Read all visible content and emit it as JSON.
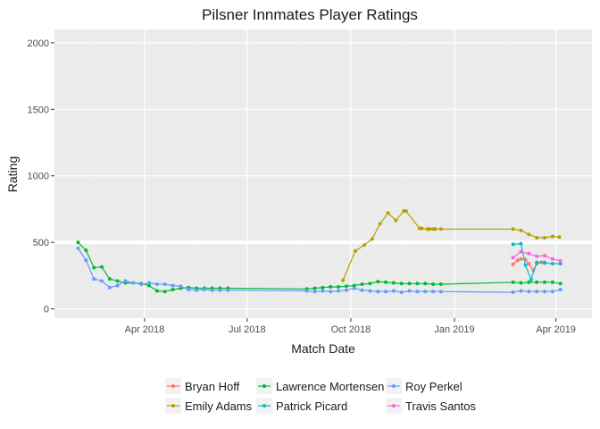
{
  "chart_data": {
    "type": "line",
    "title": "Pilsner Innmates Player Ratings",
    "xlabel": "Match Date",
    "ylabel": "Rating",
    "xlim": [
      "2018-01-11",
      "2019-05-03"
    ],
    "ylim": [
      -70,
      2100
    ],
    "x_ticks": [
      {
        "date": "2018-04-01",
        "label": "Apr 2018"
      },
      {
        "date": "2018-07-01",
        "label": "Jul 2018"
      },
      {
        "date": "2018-10-01",
        "label": "Oct 2018"
      },
      {
        "date": "2019-01-01",
        "label": "Jan 2019"
      },
      {
        "date": "2019-04-01",
        "label": "Apr 2019"
      }
    ],
    "y_ticks": [
      0,
      500,
      1000,
      1500,
      2000
    ],
    "reference_line": {
      "y": 500,
      "color": "#ffffff"
    },
    "grid": true,
    "panel_color": "#ebebeb",
    "legend_position": "bottom",
    "series": [
      {
        "name": "Bryan Hoff",
        "color": "#F8766D",
        "points": [
          [
            "2019-02-22",
            335
          ],
          [
            "2019-02-26",
            365
          ],
          [
            "2019-03-01",
            375
          ],
          [
            "2019-03-05",
            370
          ],
          [
            "2019-03-08",
            340
          ],
          [
            "2019-03-12",
            290
          ],
          [
            "2019-03-15",
            340
          ],
          [
            "2019-03-19",
            350
          ],
          [
            "2019-03-22",
            350
          ]
        ]
      },
      {
        "name": "Emily Adams",
        "color": "#B79F00",
        "points": [
          [
            "2018-09-24",
            215
          ],
          [
            "2018-10-05",
            435
          ],
          [
            "2018-10-13",
            480
          ],
          [
            "2018-10-20",
            525
          ],
          [
            "2018-10-27",
            640
          ],
          [
            "2018-11-03",
            720
          ],
          [
            "2018-11-10",
            665
          ],
          [
            "2018-11-17",
            735
          ],
          [
            "2018-11-19",
            735
          ],
          [
            "2018-12-01",
            605
          ],
          [
            "2018-12-03",
            605
          ],
          [
            "2018-12-08",
            600
          ],
          [
            "2018-12-10",
            600
          ],
          [
            "2018-12-13",
            600
          ],
          [
            "2018-12-15",
            600
          ],
          [
            "2018-12-20",
            600
          ],
          [
            "2019-02-22",
            600
          ],
          [
            "2019-03-01",
            590
          ],
          [
            "2019-03-08",
            560
          ],
          [
            "2019-03-15",
            535
          ],
          [
            "2019-03-22",
            535
          ],
          [
            "2019-03-29",
            545
          ],
          [
            "2019-04-04",
            540
          ]
        ]
      },
      {
        "name": "Lawrence Mortensen",
        "color": "#00BA38",
        "points": [
          [
            "2018-02-01",
            500
          ],
          [
            "2018-02-08",
            440
          ],
          [
            "2018-02-15",
            310
          ],
          [
            "2018-02-22",
            315
          ],
          [
            "2018-03-01",
            225
          ],
          [
            "2018-03-08",
            210
          ],
          [
            "2018-03-15",
            195
          ],
          [
            "2018-03-22",
            195
          ],
          [
            "2018-03-29",
            190
          ],
          [
            "2018-04-05",
            175
          ],
          [
            "2018-04-12",
            135
          ],
          [
            "2018-04-19",
            130
          ],
          [
            "2018-04-26",
            145
          ],
          [
            "2018-05-03",
            155
          ],
          [
            "2018-05-10",
            160
          ],
          [
            "2018-05-17",
            155
          ],
          [
            "2018-05-24",
            155
          ],
          [
            "2018-05-31",
            155
          ],
          [
            "2018-06-07",
            155
          ],
          [
            "2018-06-14",
            155
          ],
          [
            "2018-08-23",
            150
          ],
          [
            "2018-08-30",
            155
          ],
          [
            "2018-09-06",
            160
          ],
          [
            "2018-09-13",
            165
          ],
          [
            "2018-09-20",
            165
          ],
          [
            "2018-09-27",
            170
          ],
          [
            "2018-10-04",
            175
          ],
          [
            "2018-10-11",
            185
          ],
          [
            "2018-10-18",
            190
          ],
          [
            "2018-10-25",
            205
          ],
          [
            "2018-11-01",
            200
          ],
          [
            "2018-11-08",
            195
          ],
          [
            "2018-11-15",
            190
          ],
          [
            "2018-11-22",
            190
          ],
          [
            "2018-11-29",
            190
          ],
          [
            "2018-12-06",
            190
          ],
          [
            "2018-12-13",
            185
          ],
          [
            "2018-12-20",
            185
          ],
          [
            "2019-02-22",
            200
          ],
          [
            "2019-03-01",
            195
          ],
          [
            "2019-03-08",
            200
          ],
          [
            "2019-03-15",
            200
          ],
          [
            "2019-03-22",
            200
          ],
          [
            "2019-03-29",
            200
          ],
          [
            "2019-04-05",
            190
          ]
        ]
      },
      {
        "name": "Patrick Picard",
        "color": "#00BFC4",
        "points": [
          [
            "2019-02-22",
            485
          ],
          [
            "2019-03-01",
            490
          ],
          [
            "2019-03-05",
            330
          ],
          [
            "2019-03-10",
            220
          ],
          [
            "2019-03-15",
            350
          ],
          [
            "2019-03-22",
            345
          ],
          [
            "2019-03-29",
            340
          ],
          [
            "2019-04-05",
            340
          ]
        ]
      },
      {
        "name": "Roy Perkel",
        "color": "#619CFF",
        "points": [
          [
            "2018-02-01",
            455
          ],
          [
            "2018-02-08",
            365
          ],
          [
            "2018-02-15",
            225
          ],
          [
            "2018-02-22",
            210
          ],
          [
            "2018-03-01",
            160
          ],
          [
            "2018-03-08",
            175
          ],
          [
            "2018-03-15",
            210
          ],
          [
            "2018-03-22",
            195
          ],
          [
            "2018-03-29",
            185
          ],
          [
            "2018-04-05",
            195
          ],
          [
            "2018-04-12",
            185
          ],
          [
            "2018-04-19",
            185
          ],
          [
            "2018-04-26",
            175
          ],
          [
            "2018-05-03",
            170
          ],
          [
            "2018-05-10",
            145
          ],
          [
            "2018-05-17",
            140
          ],
          [
            "2018-05-24",
            145
          ],
          [
            "2018-05-31",
            140
          ],
          [
            "2018-06-07",
            140
          ],
          [
            "2018-06-14",
            140
          ],
          [
            "2018-08-23",
            135
          ],
          [
            "2018-08-30",
            130
          ],
          [
            "2018-09-06",
            135
          ],
          [
            "2018-09-13",
            130
          ],
          [
            "2018-09-20",
            135
          ],
          [
            "2018-09-27",
            140
          ],
          [
            "2018-10-04",
            155
          ],
          [
            "2018-10-11",
            140
          ],
          [
            "2018-10-18",
            135
          ],
          [
            "2018-10-25",
            130
          ],
          [
            "2018-11-01",
            130
          ],
          [
            "2018-11-08",
            135
          ],
          [
            "2018-11-15",
            125
          ],
          [
            "2018-11-22",
            135
          ],
          [
            "2018-11-29",
            130
          ],
          [
            "2018-12-06",
            130
          ],
          [
            "2018-12-13",
            130
          ],
          [
            "2018-12-20",
            130
          ],
          [
            "2019-02-22",
            125
          ],
          [
            "2019-03-01",
            135
          ],
          [
            "2019-03-08",
            130
          ],
          [
            "2019-03-15",
            130
          ],
          [
            "2019-03-22",
            130
          ],
          [
            "2019-03-29",
            130
          ],
          [
            "2019-04-05",
            145
          ]
        ]
      },
      {
        "name": "Travis Santos",
        "color": "#F564E3",
        "points": [
          [
            "2019-02-22",
            385
          ],
          [
            "2019-03-01",
            430
          ],
          [
            "2019-03-08",
            415
          ],
          [
            "2019-03-15",
            395
          ],
          [
            "2019-03-22",
            400
          ],
          [
            "2019-03-29",
            375
          ],
          [
            "2019-04-05",
            360
          ]
        ]
      }
    ]
  }
}
